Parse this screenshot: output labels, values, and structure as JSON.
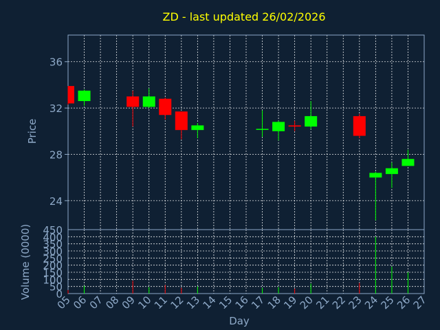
{
  "chart_data": {
    "type": "candlestick",
    "title": "ZD - last updated 26/02/2026",
    "xlabel": "Day",
    "ylabel": "Price",
    "volume_label": "Volume (0000)",
    "x_ticks": [
      "05",
      "06",
      "07",
      "08",
      "09",
      "10",
      "11",
      "12",
      "13",
      "14",
      "15",
      "16",
      "17",
      "18",
      "19",
      "20",
      "21",
      "22",
      "23",
      "24",
      "25",
      "26",
      "27"
    ],
    "ylim": [
      21.5,
      38.3
    ],
    "y_ticks": [
      24,
      28,
      32,
      36
    ],
    "volume_ylim": [
      0,
      450
    ],
    "volume_ticks": [
      0,
      50,
      100,
      150,
      200,
      250,
      300,
      350,
      400,
      450
    ],
    "grid": true,
    "colors": {
      "up": "#00ff00",
      "down": "#ff0000",
      "title": "#ffff00",
      "axis": "#8ea9c8",
      "background": "#0f2033"
    },
    "candles": [
      {
        "day": "05",
        "open": 33.9,
        "high": 33.9,
        "low": 32.3,
        "close": 32.4,
        "volume": 25
      },
      {
        "day": "06",
        "open": 32.6,
        "high": 33.6,
        "low": 32.2,
        "close": 33.5,
        "volume": 55
      },
      {
        "day": "09",
        "open": 33.0,
        "high": 33.5,
        "low": 30.4,
        "close": 32.1,
        "volume": 90
      },
      {
        "day": "10",
        "open": 32.1,
        "high": 33.7,
        "low": 32.0,
        "close": 33.0,
        "volume": 45
      },
      {
        "day": "11",
        "open": 32.8,
        "high": 32.9,
        "low": 31.0,
        "close": 31.4,
        "volume": 60
      },
      {
        "day": "12",
        "open": 31.7,
        "high": 31.7,
        "low": 29.3,
        "close": 30.1,
        "volume": 40
      },
      {
        "day": "13",
        "open": 30.1,
        "high": 30.7,
        "low": 29.4,
        "close": 30.5,
        "volume": 50
      },
      {
        "day": "17",
        "open": 30.2,
        "high": 31.8,
        "low": 29.5,
        "close": 30.2,
        "volume": 40
      },
      {
        "day": "18",
        "open": 30.0,
        "high": 30.9,
        "low": 29.2,
        "close": 30.8,
        "volume": 45
      },
      {
        "day": "19",
        "open": 30.5,
        "high": 30.9,
        "low": 30.0,
        "close": 30.4,
        "volume": 35
      },
      {
        "day": "20",
        "open": 30.4,
        "high": 32.6,
        "low": 30.2,
        "close": 31.3,
        "volume": 70
      },
      {
        "day": "23",
        "open": 31.3,
        "high": 31.5,
        "low": 29.4,
        "close": 29.6,
        "volume": 75
      },
      {
        "day": "24",
        "open": 26.0,
        "high": 26.5,
        "low": 22.3,
        "close": 26.4,
        "volume": 400
      },
      {
        "day": "25",
        "open": 26.3,
        "high": 27.3,
        "low": 25.1,
        "close": 26.8,
        "volume": 190
      },
      {
        "day": "26",
        "open": 27.0,
        "high": 28.4,
        "low": 27.0,
        "close": 27.6,
        "volume": 150
      }
    ]
  }
}
